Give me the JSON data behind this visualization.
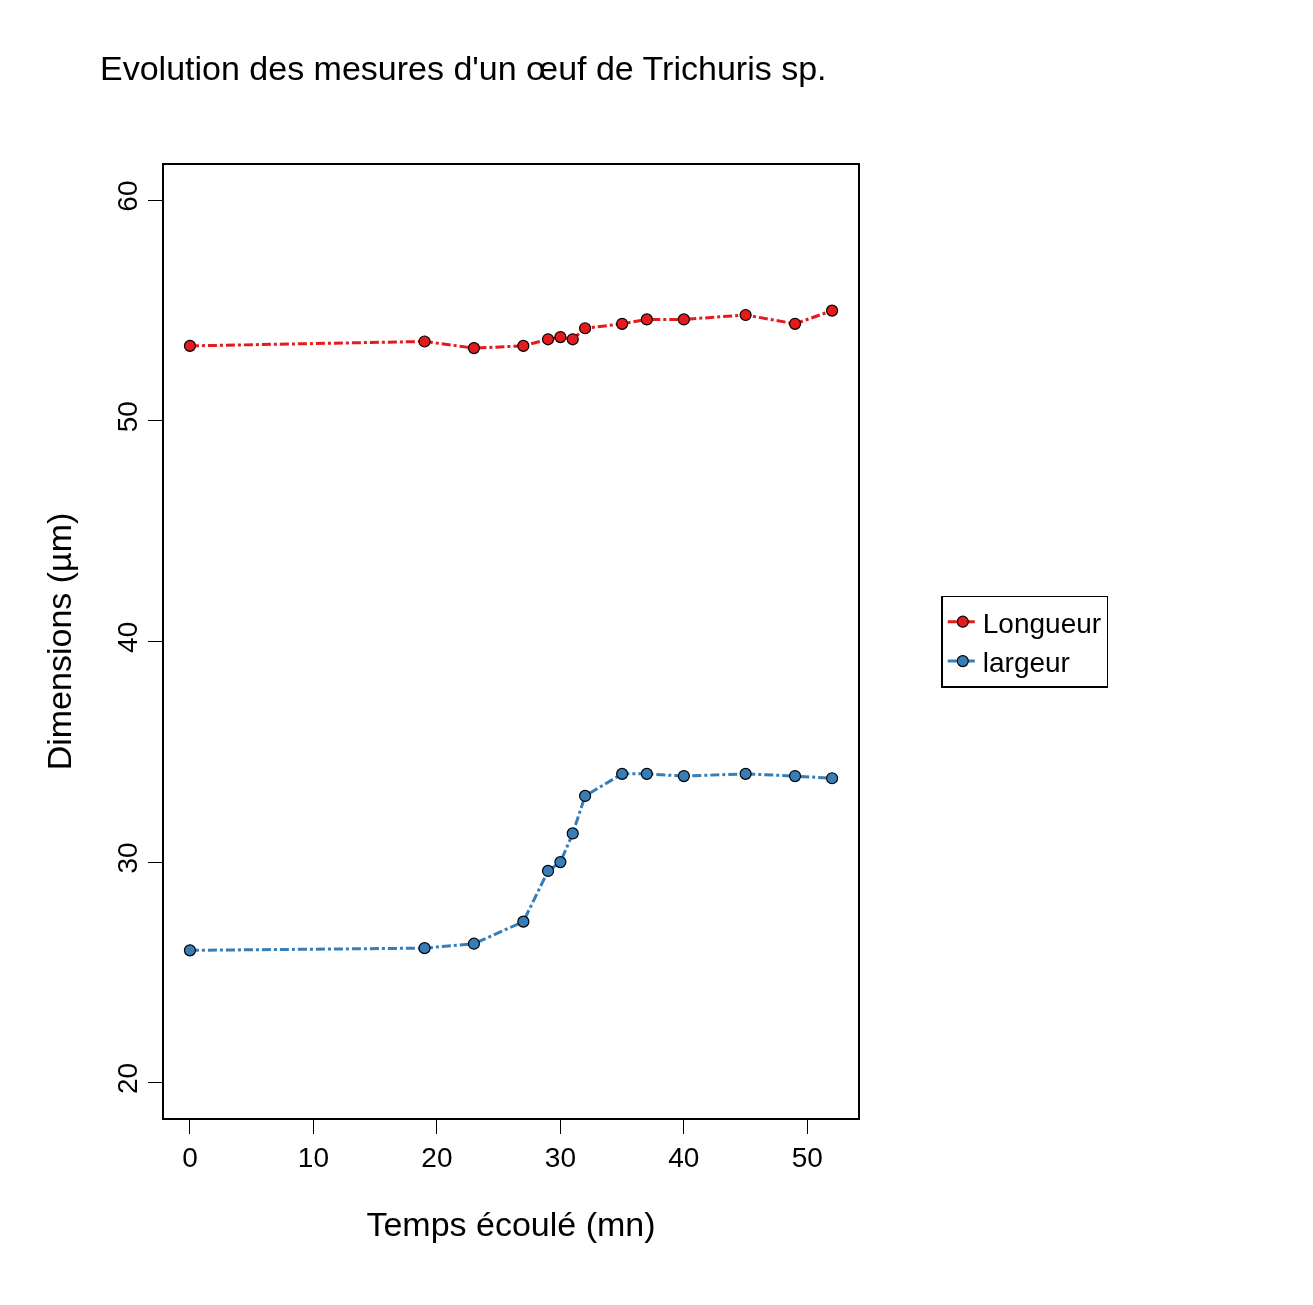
{
  "chart_data": {
    "type": "line",
    "title": "Evolution des mesures d'un œuf de Trichuris sp.",
    "xlabel": "Temps écoulé (mn)",
    "ylabel": "Dimensions (µm)",
    "x": [
      0,
      19,
      23,
      27,
      29,
      30,
      31,
      32,
      35,
      37,
      40,
      45,
      49,
      52
    ],
    "series": [
      {
        "name": "Longueur",
        "color": "#e41a1c",
        "values": [
          53.4,
          53.6,
          53.3,
          53.4,
          53.7,
          53.8,
          53.7,
          54.2,
          54.4,
          54.6,
          54.6,
          54.8,
          54.4,
          55.0
        ]
      },
      {
        "name": "largeur",
        "color": "#377eb8",
        "values": [
          26.0,
          26.1,
          26.3,
          27.3,
          29.6,
          30.0,
          31.3,
          33.0,
          34.0,
          34.0,
          33.9,
          34.0,
          33.9,
          33.8
        ]
      }
    ],
    "xlim": [
      -2.1,
      54.1
    ],
    "xticks": [
      0,
      10,
      20,
      30,
      40,
      50
    ],
    "ylim": [
      18.4,
      61.6
    ],
    "yticks": [
      20,
      30,
      40,
      50,
      60
    ],
    "grid": false,
    "legend": "right",
    "marker": "circle",
    "line_style": "dashed"
  }
}
